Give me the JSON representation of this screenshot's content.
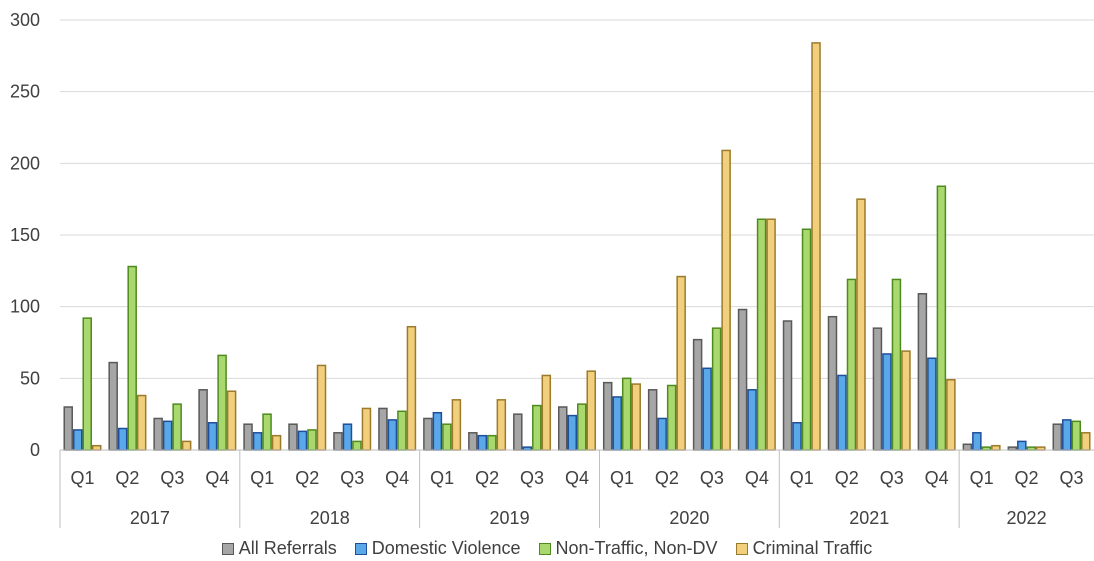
{
  "chart_data": {
    "type": "bar",
    "title": "",
    "xlabel": "",
    "ylabel": "",
    "ylim": [
      0,
      300
    ],
    "yticks": [
      0,
      50,
      100,
      150,
      200,
      250,
      300
    ],
    "grid": true,
    "legend_position": "bottom",
    "years": [
      {
        "label": "2017",
        "quarters": [
          "Q1",
          "Q2",
          "Q3",
          "Q4"
        ]
      },
      {
        "label": "2018",
        "quarters": [
          "Q1",
          "Q2",
          "Q3",
          "Q4"
        ]
      },
      {
        "label": "2019",
        "quarters": [
          "Q1",
          "Q2",
          "Q3",
          "Q4"
        ]
      },
      {
        "label": "2020",
        "quarters": [
          "Q1",
          "Q2",
          "Q3",
          "Q4"
        ]
      },
      {
        "label": "2021",
        "quarters": [
          "Q1",
          "Q2",
          "Q3",
          "Q4"
        ]
      },
      {
        "label": "2022",
        "quarters": [
          "Q1",
          "Q2",
          "Q3"
        ]
      }
    ],
    "series": [
      {
        "name": "All Referrals",
        "color": "#a6a6a6",
        "stroke": "#595959",
        "values": [
          30,
          61,
          22,
          42,
          18,
          18,
          12,
          29,
          22,
          12,
          25,
          30,
          47,
          42,
          77,
          98,
          90,
          93,
          85,
          109,
          4,
          2,
          18
        ]
      },
      {
        "name": "Domestic Violence",
        "color": "#5ba8e8",
        "stroke": "#1f4e9a",
        "values": [
          14,
          15,
          20,
          19,
          12,
          13,
          18,
          21,
          26,
          10,
          2,
          24,
          37,
          22,
          57,
          42,
          19,
          52,
          67,
          64,
          12,
          6,
          21
        ]
      },
      {
        "name": "Non-Traffic, Non-DV",
        "color": "#a9d86e",
        "stroke": "#4e8a1e",
        "values": [
          92,
          128,
          32,
          66,
          25,
          14,
          6,
          27,
          18,
          10,
          31,
          32,
          50,
          45,
          85,
          161,
          154,
          119,
          119,
          184,
          2,
          2,
          20
        ]
      },
      {
        "name": "Criminal Traffic",
        "color": "#f2cf7d",
        "stroke": "#9c7a2c",
        "values": [
          3,
          38,
          6,
          41,
          10,
          59,
          29,
          86,
          35,
          35,
          52,
          55,
          46,
          121,
          209,
          161,
          284,
          175,
          69,
          49,
          3,
          2,
          12
        ]
      }
    ]
  }
}
